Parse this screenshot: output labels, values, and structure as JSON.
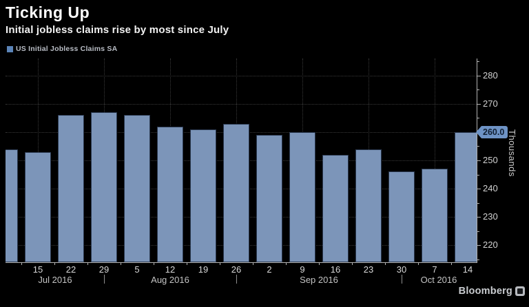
{
  "header": {
    "title": "Ticking Up",
    "subtitle": "Initial jobless claims rise by most since July"
  },
  "legend": {
    "label": "US Initial Jobless Claims SA",
    "swatch_color": "#5b84b8"
  },
  "chart_data": {
    "type": "bar",
    "title": "Ticking Up",
    "subtitle": "Initial jobless claims rise by most since July",
    "series_name": "US Initial Jobless Claims SA",
    "x": [
      "",
      "15",
      "22",
      "29",
      "5",
      "12",
      "19",
      "26",
      "2",
      "9",
      "16",
      "23",
      "30",
      "7",
      "14"
    ],
    "values": [
      254,
      253,
      266,
      267,
      266,
      262,
      261,
      263,
      259,
      260,
      252,
      254,
      246,
      247,
      260
    ],
    "months": [
      "Jul 2016",
      "Aug 2016",
      "Sep 2016",
      "Oct 2016"
    ],
    "yticks": [
      220,
      230,
      240,
      250,
      260,
      270,
      280
    ],
    "ylim": [
      214,
      286
    ],
    "ylabel": "Thousands",
    "xlabel": "",
    "last_value_label": "260.0",
    "legend_position": "top-left",
    "grid": "dotted",
    "bar_color": "#7c95b9",
    "background_color": "#000000",
    "clipped_first_bar": true
  },
  "footer": {
    "brand": "Bloomberg"
  }
}
